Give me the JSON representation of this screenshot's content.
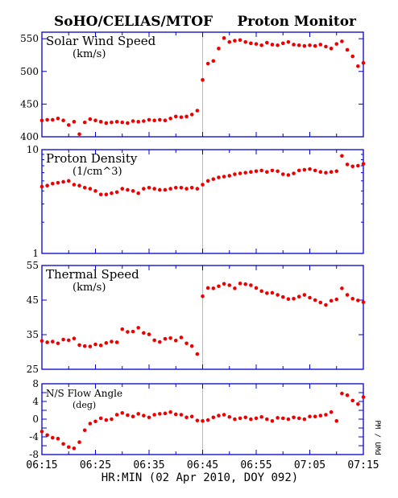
{
  "header": {
    "left": "SoHO/CELIAS/MTOF",
    "right": "Proton Monitor"
  },
  "footer": {
    "xlabel": "HR:MIN (02 Apr 2010, DOY 092)",
    "side_label": "PM / UMd"
  },
  "colors": {
    "marker": "#ee0000",
    "axis": "#0000cc",
    "text": "#000000",
    "divider": "#bbbbbb"
  },
  "chart_data": [
    {
      "type": "scatter",
      "title": "Solar Wind Speed",
      "unit": "(km/s)",
      "yscale": "linear",
      "ylim": [
        400,
        560
      ],
      "yticks": [
        400,
        450,
        500,
        550
      ],
      "xlim": [
        "06:15",
        "07:15"
      ],
      "xticks": [
        "06:15",
        "06:25",
        "06:35",
        "06:45",
        "06:55",
        "07:05",
        "07:15"
      ],
      "x": [
        "06:15",
        "06:16",
        "06:17",
        "06:18",
        "06:19",
        "06:20",
        "06:21",
        "06:22",
        "06:23",
        "06:24",
        "06:25",
        "06:26",
        "06:27",
        "06:28",
        "06:29",
        "06:30",
        "06:31",
        "06:32",
        "06:33",
        "06:34",
        "06:35",
        "06:36",
        "06:37",
        "06:38",
        "06:39",
        "06:40",
        "06:41",
        "06:42",
        "06:43",
        "06:44",
        "06:45",
        "06:46",
        "06:47",
        "06:48",
        "06:49",
        "06:50",
        "06:51",
        "06:52",
        "06:53",
        "06:54",
        "06:55",
        "06:56",
        "06:57",
        "06:58",
        "06:59",
        "07:00",
        "07:01",
        "07:02",
        "07:03",
        "07:04",
        "07:05",
        "07:06",
        "07:07",
        "07:08",
        "07:09",
        "07:10",
        "07:11",
        "07:12",
        "07:13",
        "07:14",
        "07:15"
      ],
      "values": [
        425,
        426,
        426,
        428,
        425,
        418,
        423,
        404,
        422,
        427,
        425,
        423,
        421,
        422,
        423,
        422,
        421,
        424,
        423,
        424,
        426,
        425,
        426,
        425,
        428,
        431,
        430,
        431,
        434,
        440,
        487,
        512,
        516,
        535,
        551,
        545,
        547,
        548,
        545,
        543,
        542,
        540,
        544,
        541,
        540,
        543,
        545,
        541,
        540,
        539,
        540,
        539,
        541,
        538,
        535,
        542,
        546,
        533,
        523,
        508,
        513
      ]
    },
    {
      "type": "scatter",
      "title": "Proton Density",
      "unit": "(1/cm^3)",
      "yscale": "log",
      "ylim": [
        1,
        10
      ],
      "yticks": [
        1,
        10
      ],
      "xlim": [
        "06:15",
        "07:15"
      ],
      "xticks": [
        "06:15",
        "06:25",
        "06:35",
        "06:45",
        "06:55",
        "07:05",
        "07:15"
      ],
      "x": [
        "06:15",
        "06:16",
        "06:17",
        "06:18",
        "06:19",
        "06:20",
        "06:21",
        "06:22",
        "06:23",
        "06:24",
        "06:25",
        "06:26",
        "06:27",
        "06:28",
        "06:29",
        "06:30",
        "06:31",
        "06:32",
        "06:33",
        "06:34",
        "06:35",
        "06:36",
        "06:37",
        "06:38",
        "06:39",
        "06:40",
        "06:41",
        "06:42",
        "06:43",
        "06:44",
        "06:45",
        "06:46",
        "06:47",
        "06:48",
        "06:49",
        "06:50",
        "06:51",
        "06:52",
        "06:53",
        "06:54",
        "06:55",
        "06:56",
        "06:57",
        "06:58",
        "06:59",
        "07:00",
        "07:01",
        "07:02",
        "07:03",
        "07:04",
        "07:05",
        "07:06",
        "07:07",
        "07:08",
        "07:09",
        "07:10",
        "07:11",
        "07:12",
        "07:13",
        "07:14",
        "07:15"
      ],
      "values": [
        4.4,
        4.5,
        4.7,
        4.8,
        4.9,
        5.0,
        4.6,
        4.5,
        4.3,
        4.2,
        4.0,
        3.7,
        3.7,
        3.8,
        3.9,
        4.2,
        4.1,
        4.0,
        3.8,
        4.2,
        4.3,
        4.2,
        4.1,
        4.1,
        4.2,
        4.3,
        4.3,
        4.2,
        4.3,
        4.2,
        4.6,
        5.0,
        5.2,
        5.4,
        5.5,
        5.6,
        5.8,
        5.9,
        6.0,
        6.1,
        6.2,
        6.3,
        6.1,
        6.3,
        6.2,
        5.8,
        5.7,
        5.9,
        6.3,
        6.4,
        6.5,
        6.3,
        6.1,
        6.0,
        6.1,
        6.2,
        8.7,
        7.2,
        6.9,
        7.0,
        7.3
      ]
    },
    {
      "type": "scatter",
      "title": "Thermal Speed",
      "unit": "(km/s)",
      "yscale": "linear",
      "ylim": [
        25,
        55
      ],
      "yticks": [
        25,
        35,
        45,
        55
      ],
      "xlim": [
        "06:15",
        "07:15"
      ],
      "xticks": [
        "06:15",
        "06:25",
        "06:35",
        "06:45",
        "06:55",
        "07:05",
        "07:15"
      ],
      "x": [
        "06:15",
        "06:16",
        "06:17",
        "06:18",
        "06:19",
        "06:20",
        "06:21",
        "06:22",
        "06:23",
        "06:24",
        "06:25",
        "06:26",
        "06:27",
        "06:28",
        "06:29",
        "06:30",
        "06:31",
        "06:32",
        "06:33",
        "06:34",
        "06:35",
        "06:36",
        "06:37",
        "06:38",
        "06:39",
        "06:40",
        "06:41",
        "06:42",
        "06:43",
        "06:44",
        "06:45",
        "06:46",
        "06:47",
        "06:48",
        "06:49",
        "06:50",
        "06:51",
        "06:52",
        "06:53",
        "06:54",
        "06:55",
        "06:56",
        "06:57",
        "06:58",
        "06:59",
        "07:00",
        "07:01",
        "07:02",
        "07:03",
        "07:04",
        "07:05",
        "07:06",
        "07:07",
        "07:08",
        "07:09",
        "07:10",
        "07:11",
        "07:12",
        "07:13",
        "07:14",
        "07:15"
      ],
      "values": [
        33.2,
        32.8,
        33.0,
        32.5,
        33.6,
        33.4,
        33.9,
        32.0,
        31.7,
        31.6,
        32.2,
        31.9,
        32.6,
        33.0,
        32.8,
        36.6,
        35.8,
        35.9,
        37.0,
        35.5,
        35.1,
        33.4,
        32.9,
        33.8,
        34.0,
        33.3,
        34.2,
        32.5,
        31.7,
        29.4,
        46.1,
        48.5,
        48.4,
        49.0,
        49.7,
        49.3,
        48.4,
        49.8,
        49.6,
        49.3,
        48.5,
        47.6,
        47.0,
        47.1,
        46.5,
        45.9,
        45.3,
        45.4,
        46.0,
        46.5,
        45.7,
        45.0,
        44.3,
        43.6,
        44.8,
        45.2,
        48.4,
        46.5,
        45.4,
        44.9,
        44.4
      ]
    },
    {
      "type": "scatter",
      "title": "N/S Flow Angle",
      "unit": "(deg)",
      "yscale": "linear",
      "ylim": [
        -8,
        8
      ],
      "yticks": [
        -8,
        -6,
        -4,
        -2,
        0,
        2,
        4,
        6,
        8
      ],
      "yticklabels": [
        -8,
        -4,
        0,
        4,
        8
      ],
      "xlim": [
        "06:15",
        "07:15"
      ],
      "xticks": [
        "06:15",
        "06:25",
        "06:35",
        "06:45",
        "06:55",
        "07:05",
        "07:15"
      ],
      "x": [
        "06:15",
        "06:16",
        "06:17",
        "06:18",
        "06:19",
        "06:20",
        "06:21",
        "06:22",
        "06:23",
        "06:24",
        "06:25",
        "06:26",
        "06:27",
        "06:28",
        "06:29",
        "06:30",
        "06:31",
        "06:32",
        "06:33",
        "06:34",
        "06:35",
        "06:36",
        "06:37",
        "06:38",
        "06:39",
        "06:40",
        "06:41",
        "06:42",
        "06:43",
        "06:44",
        "06:45",
        "06:46",
        "06:47",
        "06:48",
        "06:49",
        "06:50",
        "06:51",
        "06:52",
        "06:53",
        "06:54",
        "06:55",
        "06:56",
        "06:57",
        "06:58",
        "06:59",
        "07:00",
        "07:01",
        "07:02",
        "07:03",
        "07:04",
        "07:05",
        "07:06",
        "07:07",
        "07:08",
        "07:09",
        "07:10",
        "07:11",
        "07:12",
        "07:13",
        "07:14",
        "07:15"
      ],
      "values": [
        -2.8,
        -3.6,
        -4.2,
        -4.4,
        -5.6,
        -6.3,
        -6.6,
        -5.2,
        -2.5,
        -1.0,
        -0.5,
        0.2,
        -0.2,
        0.0,
        1.0,
        1.4,
        0.9,
        0.6,
        1.2,
        0.8,
        0.4,
        1.0,
        1.2,
        1.3,
        1.6,
        1.1,
        1.0,
        0.4,
        0.6,
        -0.3,
        -0.4,
        -0.2,
        0.4,
        0.8,
        1.0,
        0.5,
        0.0,
        0.2,
        0.4,
        0.0,
        0.2,
        0.5,
        0.0,
        -0.4,
        0.3,
        0.2,
        0.0,
        0.4,
        0.2,
        0.0,
        0.6,
        0.6,
        0.8,
        1.0,
        1.6,
        -0.4,
        5.8,
        5.4,
        4.2,
        3.4,
        5.0
      ]
    }
  ]
}
